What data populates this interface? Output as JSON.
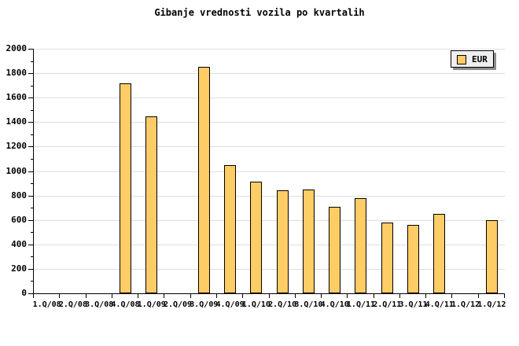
{
  "title": "Gibanje vrednosti vozila po kvartalih",
  "legend": {
    "label": "EUR"
  },
  "colors": {
    "background": "#FFFFFF",
    "bar_fill": "#FFCC66",
    "bar_border": "#000000",
    "gridline": "#DEDEDE",
    "axis": "#000000",
    "text": "#000000",
    "legend_bg": "#EFEFEF",
    "legend_border": "#000000",
    "legend_shadow": "#8C8C8C"
  },
  "chart_data": {
    "type": "bar",
    "title": "Gibanje vrednosti vozila po kvartalih",
    "categories": [
      "1.Q/08",
      "2.Q/08",
      "3.Q/08",
      "4.Q/08",
      "1.Q/09",
      "2.Q/09",
      "3.Q/09",
      "4.Q/09",
      "1.Q/10",
      "2.Q/10",
      "3.Q/10",
      "4.Q/10",
      "1.Q/11",
      "2.Q/11",
      "3.Q/11",
      "4.Q/11",
      "1.Q/12",
      "1.Q/12"
    ],
    "series": [
      {
        "name": "EUR",
        "values": [
          null,
          null,
          null,
          1720,
          1450,
          null,
          1850,
          1050,
          910,
          840,
          850,
          710,
          780,
          580,
          560,
          650,
          null,
          600
        ]
      }
    ],
    "ylim": [
      0,
      2000
    ],
    "yticks": [
      0,
      200,
      400,
      600,
      800,
      1000,
      1200,
      1400,
      1600,
      1800,
      2000
    ],
    "minor_ytick_step": 100,
    "grid": "horizontal-major",
    "legend_position": "top-right",
    "legend_entries": [
      "EUR"
    ],
    "xlabel": "",
    "ylabel": ""
  }
}
